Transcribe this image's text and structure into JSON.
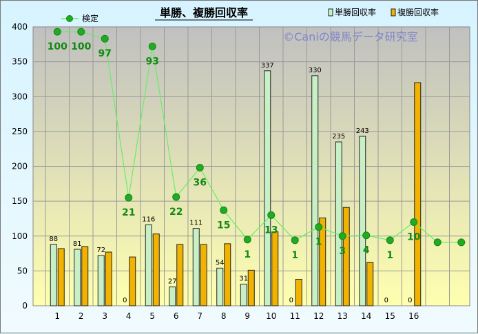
{
  "chart_data": {
    "type": "bar",
    "title": "単勝、複勝回収率",
    "watermark": "©Caniの競馬データ研究室",
    "categories": [
      "1",
      "2",
      "3",
      "4",
      "5",
      "6",
      "7",
      "8",
      "9",
      "10",
      "11",
      "12",
      "13",
      "14",
      "15",
      "16"
    ],
    "ylim": [
      0,
      400
    ],
    "yticks": [
      0,
      50,
      100,
      150,
      200,
      250,
      300,
      350,
      400
    ],
    "grid": true,
    "legend_position": "top",
    "colors": {
      "win": "#c7f0c7",
      "place": "#f2b300",
      "check": "#22aa22",
      "check_line": "#66ee66",
      "bar_border": "#222222"
    },
    "series": [
      {
        "name": "単勝回収率",
        "values": [
          88,
          81,
          72,
          0,
          116,
          27,
          111,
          54,
          31,
          337,
          0,
          330,
          235,
          243,
          0,
          0
        ],
        "labels": [
          "88",
          "81",
          "72",
          "0",
          "116",
          "27",
          "111",
          "54",
          "31",
          "337",
          "0",
          "330",
          "235",
          "243",
          "0",
          "0"
        ]
      },
      {
        "name": "複勝回収率",
        "values": [
          82,
          85,
          77,
          70,
          103,
          88,
          88,
          89,
          51,
          106,
          38,
          126,
          141,
          62,
          null,
          320
        ]
      },
      {
        "name": "検定",
        "type": "line",
        "x": [
          1,
          2,
          3,
          4,
          5,
          6,
          7,
          8,
          9,
          10,
          11,
          12,
          13,
          14,
          15,
          16,
          17,
          18
        ],
        "values": [
          393,
          393,
          383,
          155,
          372,
          156,
          198,
          137,
          95,
          130,
          94,
          113,
          100,
          101,
          94,
          120,
          91,
          91
        ],
        "labels": [
          "100",
          "100",
          "97",
          "21",
          "93",
          "22",
          "36",
          "15",
          "1",
          "13",
          "1",
          "1",
          "3",
          "4",
          "1",
          "10",
          "",
          ""
        ]
      }
    ]
  }
}
